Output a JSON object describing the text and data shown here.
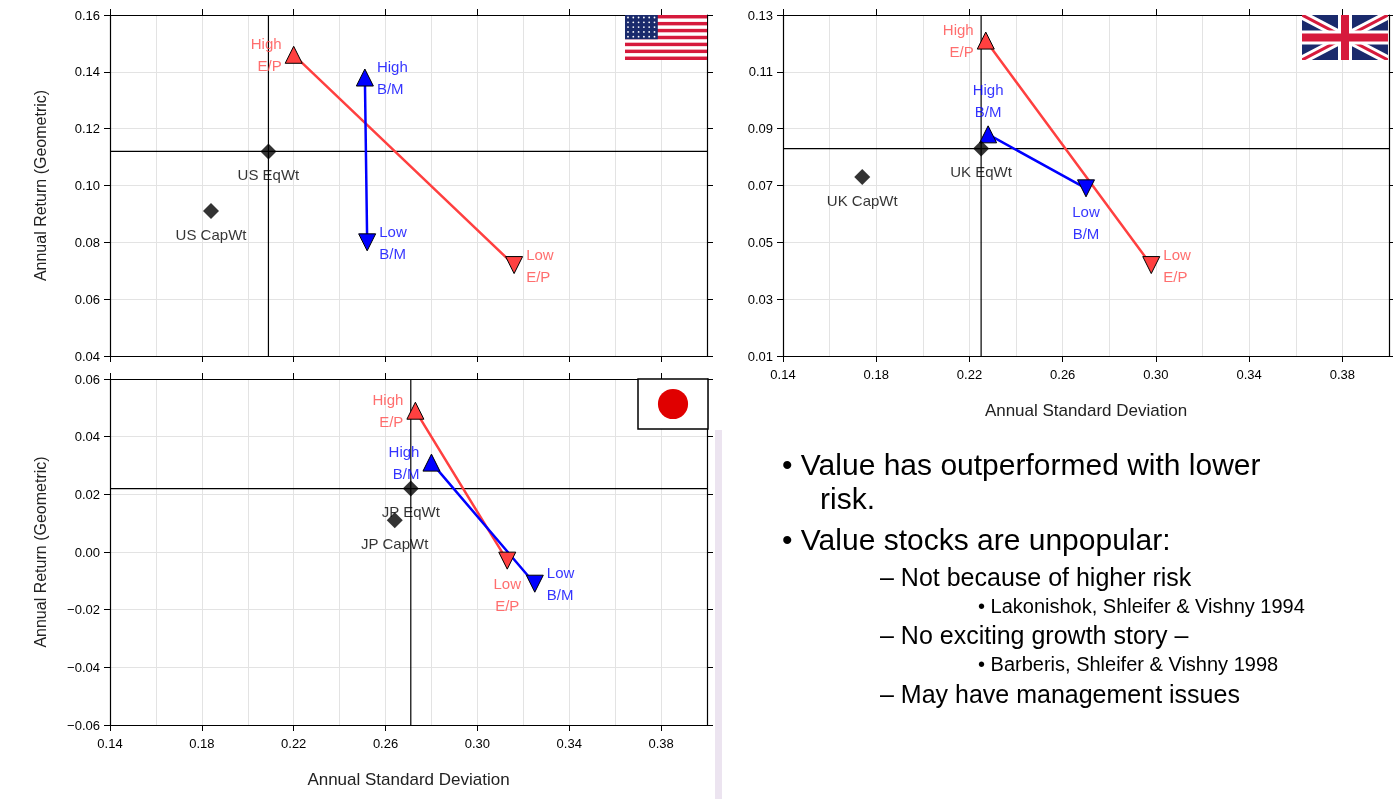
{
  "chart_data": [
    {
      "type": "scatter",
      "ylabel": "Annual Return (Geometric)",
      "tick_labels": "y",
      "grid": true,
      "xlim": [
        0.14,
        0.4
      ],
      "ylim": [
        0.04,
        0.16
      ],
      "xticks": [
        {
          "value": 0.14,
          "label": null
        },
        {
          "value": 0.18,
          "label": null
        },
        {
          "value": 0.22,
          "label": null
        },
        {
          "value": 0.26,
          "label": null
        },
        {
          "value": 0.3,
          "label": null
        },
        {
          "value": 0.34,
          "label": null
        },
        {
          "value": 0.38,
          "label": null
        }
      ],
      "yticks": [
        {
          "value": 0.04,
          "label": "0.04"
        },
        {
          "value": 0.06,
          "label": "0.06"
        },
        {
          "value": 0.08,
          "label": "0.08"
        },
        {
          "value": 0.1,
          "label": "0.10"
        },
        {
          "value": 0.12,
          "label": "0.12"
        },
        {
          "value": 0.14,
          "label": "0.14"
        },
        {
          "value": 0.16,
          "label": "0.16"
        }
      ],
      "series": [
        {
          "type": "line",
          "color": "#ff4040",
          "marker": "triangle",
          "x": [
            0.22,
            0.316
          ],
          "values": [
            0.146,
            0.072
          ]
        },
        {
          "type": "line",
          "color": "#0000ff",
          "marker": "triangle",
          "x": [
            0.251,
            0.252
          ],
          "values": [
            0.138,
            0.08
          ]
        },
        {
          "type": "scatter",
          "color": "#000000",
          "marker": "diamond",
          "x": [
            0.209,
            0.184
          ],
          "values": [
            0.112,
            0.091
          ]
        }
      ],
      "ref_lines": [
        {
          "axis": "x",
          "value": 0.209,
          "color": "#000000"
        },
        {
          "axis": "y",
          "value": 0.112,
          "color": "#000000"
        }
      ],
      "annotations": [
        {
          "text": "High\nE/P",
          "x": 0.22,
          "y": 0.146
        },
        {
          "text": "Low\nE/P",
          "x": 0.316,
          "y": 0.072
        },
        {
          "text": "High\nB/M",
          "x": 0.251,
          "y": 0.138
        },
        {
          "text": "Low\nB/M",
          "x": 0.252,
          "y": 0.08
        },
        {
          "text": "US EqWt",
          "x": 0.209,
          "y": 0.112
        },
        {
          "text": "US CapWt",
          "x": 0.184,
          "y": 0.091
        }
      ]
    },
    {
      "type": "scatter",
      "xlabel": "Annual Standard Deviation",
      "grid": true,
      "xlim": [
        0.14,
        0.4
      ],
      "ylim": [
        0.01,
        0.13
      ],
      "xticks": [
        {
          "value": 0.14,
          "label": "0.14"
        },
        {
          "value": 0.18,
          "label": "0.18"
        },
        {
          "value": 0.22,
          "label": "0.22"
        },
        {
          "value": 0.26,
          "label": "0.26"
        },
        {
          "value": 0.3,
          "label": "0.30"
        },
        {
          "value": 0.34,
          "label": "0.34"
        },
        {
          "value": 0.38,
          "label": "0.38"
        }
      ],
      "yticks": [
        {
          "value": 0.01,
          "label": "0.01"
        },
        {
          "value": 0.03,
          "label": "0.03"
        },
        {
          "value": 0.05,
          "label": "0.05"
        },
        {
          "value": 0.07,
          "label": "0.07"
        },
        {
          "value": 0.09,
          "label": "0.09"
        },
        {
          "value": 0.11,
          "label": "0.11"
        },
        {
          "value": 0.13,
          "label": "0.13"
        }
      ],
      "series": [
        {
          "type": "line",
          "color": "#ff4040",
          "marker": "triangle",
          "x": [
            0.227,
            0.298
          ],
          "values": [
            0.121,
            0.042
          ]
        },
        {
          "type": "line",
          "color": "#0000ff",
          "marker": "triangle",
          "x": [
            0.228,
            0.27
          ],
          "values": [
            0.088,
            0.069
          ]
        },
        {
          "type": "scatter",
          "color": "#000000",
          "marker": "diamond",
          "x": [
            0.225,
            0.174
          ],
          "values": [
            0.083,
            0.073
          ]
        }
      ],
      "ref_lines": [
        {
          "axis": "x",
          "value": 0.225,
          "color": "#000000"
        },
        {
          "axis": "y",
          "value": 0.083,
          "color": "#000000"
        }
      ],
      "annotations": [
        {
          "text": "High\nE/P",
          "x": 0.227,
          "y": 0.121
        },
        {
          "text": "Low\nE/P",
          "x": 0.298,
          "y": 0.042
        },
        {
          "text": "High\nB/M",
          "x": 0.228,
          "y": 0.088
        },
        {
          "text": "Low\nB/M",
          "x": 0.27,
          "y": 0.069
        },
        {
          "text": "UK EqWt",
          "x": 0.225,
          "y": 0.083
        },
        {
          "text": "UK CapWt",
          "x": 0.174,
          "y": 0.073
        }
      ]
    },
    {
      "type": "scatter",
      "xlabel": "Annual Standard Deviation",
      "ylabel": "Annual Return (Geometric)",
      "grid": true,
      "xlim": [
        0.14,
        0.4
      ],
      "ylim": [
        -0.06,
        0.06
      ],
      "xticks": [
        {
          "value": 0.14,
          "label": "0.14"
        },
        {
          "value": 0.18,
          "label": "0.18"
        },
        {
          "value": 0.22,
          "label": "0.22"
        },
        {
          "value": 0.26,
          "label": "0.26"
        },
        {
          "value": 0.3,
          "label": "0.30"
        },
        {
          "value": 0.34,
          "label": "0.34"
        },
        {
          "value": 0.38,
          "label": "0.38"
        }
      ],
      "yticks": [
        {
          "value": -0.06,
          "label": "−0.06"
        },
        {
          "value": -0.04,
          "label": "−0.04"
        },
        {
          "value": -0.02,
          "label": "−0.02"
        },
        {
          "value": 0,
          "label": "0.00"
        },
        {
          "value": 0.02,
          "label": "0.02"
        },
        {
          "value": 0.04,
          "label": "0.04"
        },
        {
          "value": 0.06,
          "label": "0.06"
        }
      ],
      "series": [
        {
          "type": "line",
          "color": "#ff4040",
          "marker": "triangle",
          "x": [
            0.273,
            0.313
          ],
          "values": [
            0.049,
            -0.003
          ]
        },
        {
          "type": "line",
          "color": "#0000ff",
          "marker": "triangle",
          "x": [
            0.28,
            0.325
          ],
          "values": [
            0.031,
            -0.011
          ]
        },
        {
          "type": "scatter",
          "color": "#000000",
          "marker": "diamond",
          "x": [
            0.271,
            0.264
          ],
          "values": [
            0.022,
            0.011
          ]
        }
      ],
      "ref_lines": [
        {
          "axis": "x",
          "value": 0.271,
          "color": "#000000"
        },
        {
          "axis": "y",
          "value": 0.022,
          "color": "#000000"
        }
      ],
      "annotations": [
        {
          "text": "High\nE/P",
          "x": 0.273,
          "y": 0.049
        },
        {
          "text": "Low\nE/P",
          "x": 0.313,
          "y": -0.003
        },
        {
          "text": "High\nB/M",
          "x": 0.28,
          "y": 0.031
        },
        {
          "text": "Low\nB/M",
          "x": 0.325,
          "y": -0.011
        },
        {
          "text": "JP EqWt",
          "x": 0.271,
          "y": 0.022
        },
        {
          "text": "JP CapWt",
          "x": 0.264,
          "y": 0.011
        }
      ]
    },
    {
      "type": "other",
      "annotations": [
        "• Value has outperformed with lower risk.",
        "• Value stocks are unpopular:",
        "– Not because of higher risk",
        "• Lakonishok, Shleifer & Vishny 1994",
        "– No exciting growth story –",
        "• Barberis, Shleifer & Vishny 1998",
        "– May have management issues"
      ]
    }
  ]
}
